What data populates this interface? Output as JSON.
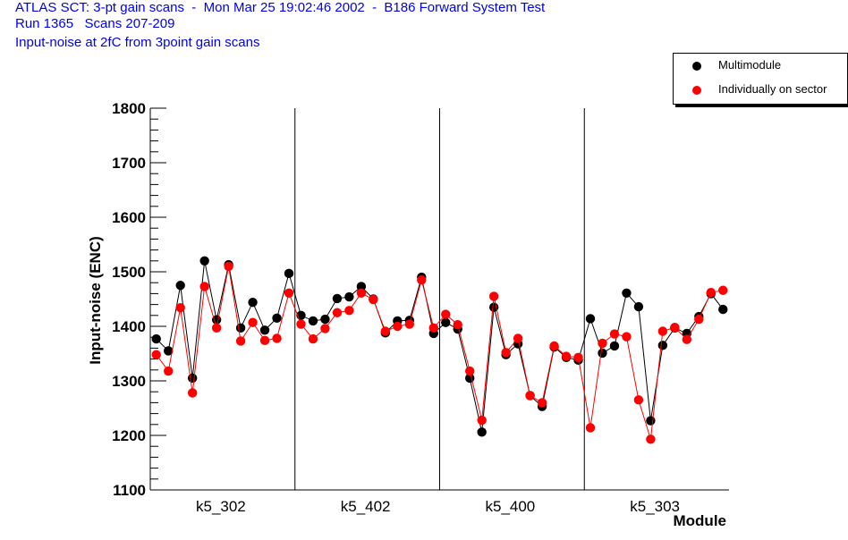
{
  "header": {
    "line1": "ATLAS SCT: 3-pt gain scans  -  Mon Mar 25 19:02:46 2002  -  B186 Forward System Test",
    "line2": "Run 1365   Scans 207-209",
    "line3": "Input-noise at 2fC from 3point gain scans"
  },
  "legend": {
    "items": [
      {
        "label": "Multimodule",
        "color": "#000000"
      },
      {
        "label": "Individually on sector",
        "color": "#ff0000"
      }
    ]
  },
  "chart_data": {
    "type": "line",
    "title": "",
    "ylabel": "Input-noise (ENC)",
    "xlabel": "Module",
    "ylim": [
      1100,
      1800
    ],
    "yticks": [
      1100,
      1200,
      1300,
      1400,
      1500,
      1600,
      1700,
      1800
    ],
    "xlim": [
      0,
      48
    ],
    "groups": [
      {
        "label": "k5_302",
        "range": [
          0,
          12
        ]
      },
      {
        "label": "k5_402",
        "range": [
          12,
          24
        ]
      },
      {
        "label": "k5_400",
        "range": [
          24,
          36
        ]
      },
      {
        "label": "k5_303",
        "range": [
          36,
          48
        ]
      }
    ],
    "x": [
      0.5,
      1.5,
      2.5,
      3.5,
      4.5,
      5.5,
      6.5,
      7.5,
      8.5,
      9.5,
      10.5,
      11.5,
      12.5,
      13.5,
      14.5,
      15.5,
      16.5,
      17.5,
      18.5,
      19.5,
      20.5,
      21.5,
      22.5,
      23.5,
      24.5,
      25.5,
      26.5,
      27.5,
      28.5,
      29.5,
      30.5,
      31.5,
      32.5,
      33.5,
      34.5,
      35.5,
      36.5,
      37.5,
      38.5,
      39.5,
      40.5,
      41.5,
      42.5,
      43.5,
      44.5,
      45.5,
      46.5,
      47.5
    ],
    "series": [
      {
        "name": "Multimodule",
        "color": "#000000",
        "values": [
          1377,
          1355,
          1475,
          1305,
          1520,
          1412,
          1513,
          1397,
          1444,
          1393,
          1415,
          1497,
          1420,
          1410,
          1413,
          1451,
          1454,
          1473,
          1450,
          1388,
          1410,
          1411,
          1490,
          1387,
          1407,
          1395,
          1305,
          1206,
          1435,
          1348,
          1368,
          1273,
          1253,
          1362,
          1343,
          1338,
          1414,
          1351,
          1364,
          1461,
          1436,
          1227,
          1365,
          1397,
          1387,
          1418,
          1460,
          1431
        ]
      },
      {
        "name": "Individually on sector",
        "color": "#ff0000",
        "values": [
          1348,
          1318,
          1434,
          1278,
          1473,
          1397,
          1510,
          1373,
          1407,
          1374,
          1378,
          1461,
          1404,
          1377,
          1396,
          1425,
          1429,
          1461,
          1449,
          1391,
          1400,
          1404,
          1485,
          1397,
          1422,
          1403,
          1318,
          1228,
          1455,
          1352,
          1378,
          1273,
          1260,
          1364,
          1345,
          1343,
          1214,
          1369,
          1386,
          1381,
          1265,
          1193,
          1391,
          1398,
          1376,
          1413,
          1462,
          1466
        ]
      }
    ]
  }
}
